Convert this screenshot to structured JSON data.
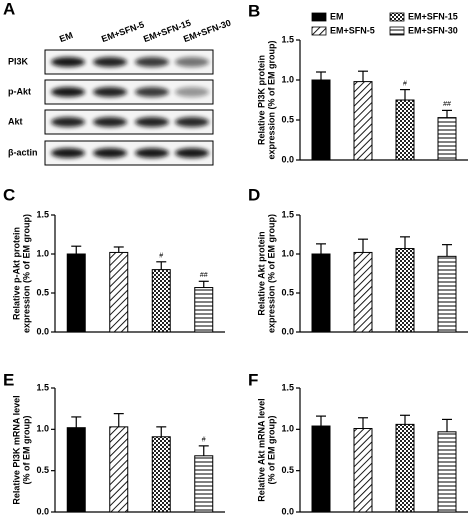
{
  "blot": {
    "panel": "A",
    "lanes": [
      "EM",
      "EM+SFN-5",
      "EM+SFN-15",
      "EM+SFN-30"
    ],
    "rows": [
      "PI3K",
      "p-Akt",
      "Akt",
      "β-actin"
    ]
  },
  "legend": [
    {
      "name": "EM",
      "pattern": "solid"
    },
    {
      "name": "EM+SFN-5",
      "pattern": "diag"
    },
    {
      "name": "EM+SFN-15",
      "pattern": "check"
    },
    {
      "name": "EM+SFN-30",
      "pattern": "hline"
    }
  ],
  "chart_data": [
    {
      "type": "bar",
      "panel": "B",
      "ylabel": [
        "Relative PI3K protein",
        "expression (% of EM group)"
      ],
      "categories": [
        null,
        null,
        null,
        null
      ],
      "values": [
        1.0,
        0.98,
        0.75,
        0.53
      ],
      "errors": [
        0.1,
        0.13,
        0.13,
        0.09
      ],
      "annotations": [
        null,
        null,
        "#",
        "##"
      ],
      "ylim": [
        0,
        1.5
      ],
      "yticks": [
        {
          "value": 0,
          "label": "0.0"
        },
        {
          "value": 0.5,
          "label": "0.5"
        },
        {
          "value": 1,
          "label": "1.0"
        },
        {
          "value": 1.5,
          "label": "1.5"
        }
      ]
    },
    {
      "type": "bar",
      "panel": "C",
      "ylabel": [
        "Relative p-Akt protein",
        "expression (% of EM group)"
      ],
      "categories": [
        null,
        null,
        null,
        null
      ],
      "values": [
        1.0,
        1.02,
        0.8,
        0.57
      ],
      "errors": [
        0.1,
        0.07,
        0.1,
        0.08
      ],
      "annotations": [
        null,
        null,
        "#",
        "##"
      ],
      "ylim": [
        0,
        1.5
      ],
      "yticks": [
        {
          "value": 0,
          "label": "0.0"
        },
        {
          "value": 0.5,
          "label": "0.5"
        },
        {
          "value": 1,
          "label": "1.0"
        },
        {
          "value": 1.5,
          "label": "1.5"
        }
      ]
    },
    {
      "type": "bar",
      "panel": "D",
      "ylabel": [
        "Relative Akt protein",
        "expression (% of EM group)"
      ],
      "categories": [
        null,
        null,
        null,
        null
      ],
      "values": [
        1.0,
        1.02,
        1.07,
        0.97
      ],
      "errors": [
        0.13,
        0.17,
        0.15,
        0.15
      ],
      "annotations": [
        null,
        null,
        null,
        null
      ],
      "ylim": [
        0,
        1.5
      ],
      "yticks": [
        {
          "value": 0,
          "label": "0.0"
        },
        {
          "value": 0.5,
          "label": "0.5"
        },
        {
          "value": 1,
          "label": "1.0"
        },
        {
          "value": 1.5,
          "label": "1.5"
        }
      ]
    },
    {
      "type": "bar",
      "panel": "E",
      "ylabel": [
        "Relative PI3K mRNA level",
        "(% of EM group)"
      ],
      "categories": [
        null,
        null,
        null,
        null
      ],
      "values": [
        1.02,
        1.03,
        0.91,
        0.68
      ],
      "errors": [
        0.13,
        0.16,
        0.12,
        0.12
      ],
      "annotations": [
        null,
        null,
        null,
        "#"
      ],
      "ylim": [
        0,
        1.5
      ],
      "yticks": [
        {
          "value": 0,
          "label": "0.0"
        },
        {
          "value": 0.5,
          "label": "0.5"
        },
        {
          "value": 1,
          "label": "1.0"
        },
        {
          "value": 1.5,
          "label": "1.5"
        }
      ]
    },
    {
      "type": "bar",
      "panel": "F",
      "ylabel": [
        "Relative Akt mRNA level",
        "(% of EM group)"
      ],
      "categories": [
        null,
        null,
        null,
        null
      ],
      "values": [
        1.04,
        1.01,
        1.06,
        0.97
      ],
      "errors": [
        0.12,
        0.13,
        0.11,
        0.15
      ],
      "annotations": [
        null,
        null,
        null,
        null
      ],
      "ylim": [
        0,
        1.5
      ],
      "yticks": [
        {
          "value": 0,
          "label": "0.0"
        },
        {
          "value": 0.5,
          "label": "0.5"
        },
        {
          "value": 1,
          "label": "1.0"
        },
        {
          "value": 1.5,
          "label": "1.5"
        }
      ]
    }
  ]
}
